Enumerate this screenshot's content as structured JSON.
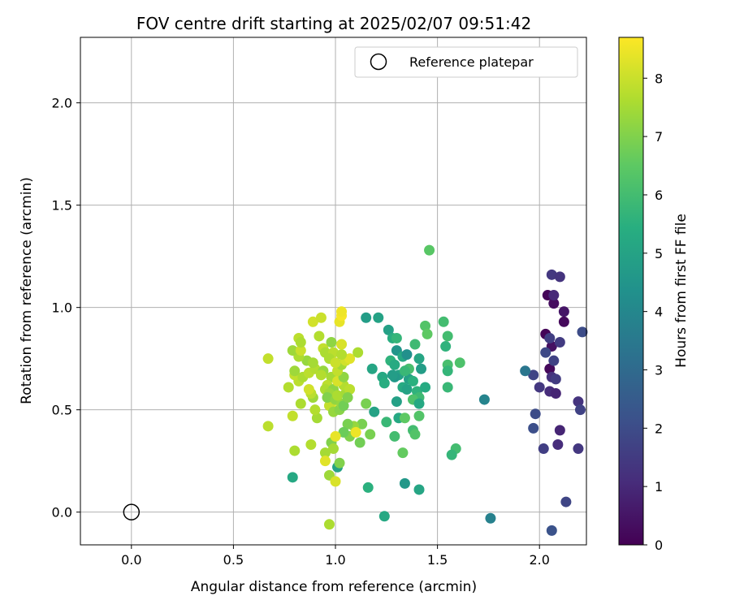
{
  "chart_data": {
    "type": "scatter",
    "title": "FOV centre drift starting at 2025/02/07 09:51:42",
    "xlabel": "Angular distance from reference (arcmin)",
    "ylabel": "Rotation from reference (arcmin)",
    "xlim": [
      -0.25,
      2.23
    ],
    "ylim": [
      -0.16,
      2.32
    ],
    "x_ticks": [
      0.0,
      0.5,
      1.0,
      1.5,
      2.0
    ],
    "y_ticks": [
      0.0,
      0.5,
      1.0,
      1.5,
      2.0
    ],
    "x_tick_labels": [
      "0.0",
      "0.5",
      "1.0",
      "1.5",
      "2.0"
    ],
    "y_tick_labels": [
      "0.0",
      "0.5",
      "1.0",
      "1.5",
      "2.0"
    ],
    "grid": true,
    "legend": {
      "position": "top-right",
      "label": "Reference platepar"
    },
    "reference_point": {
      "x": 0.0,
      "y": 0.0
    },
    "colorbar": {
      "label": "Hours from first FF file",
      "colormap": "viridis",
      "range": [
        0,
        8.7
      ],
      "ticks": [
        0,
        1,
        2,
        3,
        4,
        5,
        6,
        7,
        8
      ],
      "tick_labels": [
        "0",
        "1",
        "2",
        "3",
        "4",
        "5",
        "6",
        "7",
        "8"
      ]
    },
    "points": [
      {
        "x": 2.04,
        "y": 1.06,
        "h": 0.1
      },
      {
        "x": 2.07,
        "y": 1.02,
        "h": 0.3
      },
      {
        "x": 2.12,
        "y": 0.98,
        "h": 0.5
      },
      {
        "x": 2.12,
        "y": 0.93,
        "h": 0.2
      },
      {
        "x": 2.03,
        "y": 0.87,
        "h": 0.1
      },
      {
        "x": 2.06,
        "y": 0.81,
        "h": 0.4
      },
      {
        "x": 2.05,
        "y": 0.7,
        "h": 0.2
      },
      {
        "x": 2.06,
        "y": 1.16,
        "h": 1.4
      },
      {
        "x": 2.1,
        "y": 1.15,
        "h": 1.3
      },
      {
        "x": 2.07,
        "y": 1.06,
        "h": 1.0
      },
      {
        "x": 2.05,
        "y": 0.85,
        "h": 1.6
      },
      {
        "x": 2.1,
        "y": 0.83,
        "h": 1.5
      },
      {
        "x": 2.03,
        "y": 0.78,
        "h": 1.9
      },
      {
        "x": 2.07,
        "y": 0.74,
        "h": 1.7
      },
      {
        "x": 2.06,
        "y": 0.66,
        "h": 1.2
      },
      {
        "x": 2.08,
        "y": 0.65,
        "h": 1.5
      },
      {
        "x": 1.97,
        "y": 0.67,
        "h": 1.8
      },
      {
        "x": 2.0,
        "y": 0.61,
        "h": 1.4
      },
      {
        "x": 2.05,
        "y": 0.59,
        "h": 1.1
      },
      {
        "x": 2.08,
        "y": 0.58,
        "h": 0.9
      },
      {
        "x": 2.19,
        "y": 0.54,
        "h": 1.3
      },
      {
        "x": 2.2,
        "y": 0.5,
        "h": 1.7
      },
      {
        "x": 1.98,
        "y": 0.48,
        "h": 2.0
      },
      {
        "x": 1.97,
        "y": 0.41,
        "h": 2.1
      },
      {
        "x": 2.1,
        "y": 0.4,
        "h": 0.9
      },
      {
        "x": 2.09,
        "y": 0.33,
        "h": 1.1
      },
      {
        "x": 2.02,
        "y": 0.31,
        "h": 1.6
      },
      {
        "x": 2.19,
        "y": 0.31,
        "h": 1.4
      },
      {
        "x": 2.13,
        "y": 0.05,
        "h": 1.8
      },
      {
        "x": 2.06,
        "y": -0.09,
        "h": 2.2
      },
      {
        "x": 2.21,
        "y": 0.88,
        "h": 2.0
      },
      {
        "x": 1.93,
        "y": 0.69,
        "h": 3.4
      },
      {
        "x": 1.73,
        "y": 0.55,
        "h": 3.9
      },
      {
        "x": 1.76,
        "y": -0.03,
        "h": 3.8
      },
      {
        "x": 1.46,
        "y": 1.28,
        "h": 6.4
      },
      {
        "x": 1.53,
        "y": 0.93,
        "h": 6.0
      },
      {
        "x": 1.44,
        "y": 0.91,
        "h": 6.3
      },
      {
        "x": 1.45,
        "y": 0.87,
        "h": 6.5
      },
      {
        "x": 1.55,
        "y": 0.86,
        "h": 6.0
      },
      {
        "x": 1.54,
        "y": 0.81,
        "h": 5.6
      },
      {
        "x": 1.55,
        "y": 0.72,
        "h": 6.1
      },
      {
        "x": 1.61,
        "y": 0.73,
        "h": 6.2
      },
      {
        "x": 1.55,
        "y": 0.69,
        "h": 5.7
      },
      {
        "x": 1.55,
        "y": 0.61,
        "h": 5.8
      },
      {
        "x": 1.59,
        "y": 0.31,
        "h": 6.0
      },
      {
        "x": 1.57,
        "y": 0.28,
        "h": 5.7
      },
      {
        "x": 1.41,
        "y": 0.11,
        "h": 5.1
      },
      {
        "x": 1.34,
        "y": 0.14,
        "h": 4.6
      },
      {
        "x": 1.24,
        "y": -0.02,
        "h": 5.2
      },
      {
        "x": 1.16,
        "y": 0.12,
        "h": 5.5
      },
      {
        "x": 1.15,
        "y": 0.95,
        "h": 4.8
      },
      {
        "x": 1.21,
        "y": 0.95,
        "h": 5.0
      },
      {
        "x": 1.26,
        "y": 0.89,
        "h": 4.9
      },
      {
        "x": 1.28,
        "y": 0.85,
        "h": 5.4
      },
      {
        "x": 1.3,
        "y": 0.85,
        "h": 5.7
      },
      {
        "x": 1.3,
        "y": 0.79,
        "h": 4.5
      },
      {
        "x": 1.33,
        "y": 0.76,
        "h": 5.2
      },
      {
        "x": 1.35,
        "y": 0.77,
        "h": 4.3
      },
      {
        "x": 1.39,
        "y": 0.82,
        "h": 5.9
      },
      {
        "x": 1.27,
        "y": 0.74,
        "h": 5.6
      },
      {
        "x": 1.29,
        "y": 0.72,
        "h": 5.3
      },
      {
        "x": 1.41,
        "y": 0.75,
        "h": 5.1
      },
      {
        "x": 1.42,
        "y": 0.7,
        "h": 4.8
      },
      {
        "x": 1.36,
        "y": 0.7,
        "h": 6.1
      },
      {
        "x": 1.31,
        "y": 0.67,
        "h": 5.0
      },
      {
        "x": 1.29,
        "y": 0.66,
        "h": 4.6
      },
      {
        "x": 1.23,
        "y": 0.66,
        "h": 5.2
      },
      {
        "x": 1.24,
        "y": 0.63,
        "h": 5.4
      },
      {
        "x": 1.36,
        "y": 0.65,
        "h": 4.9
      },
      {
        "x": 1.38,
        "y": 0.64,
        "h": 5.5
      },
      {
        "x": 1.33,
        "y": 0.61,
        "h": 5.3
      },
      {
        "x": 1.35,
        "y": 0.6,
        "h": 5.0
      },
      {
        "x": 1.4,
        "y": 0.59,
        "h": 5.6
      },
      {
        "x": 1.44,
        "y": 0.61,
        "h": 5.3
      },
      {
        "x": 1.41,
        "y": 0.56,
        "h": 5.9
      },
      {
        "x": 1.38,
        "y": 0.55,
        "h": 6.2
      },
      {
        "x": 1.41,
        "y": 0.53,
        "h": 5.2
      },
      {
        "x": 1.3,
        "y": 0.54,
        "h": 4.9
      },
      {
        "x": 1.18,
        "y": 0.7,
        "h": 5.1
      },
      {
        "x": 1.19,
        "y": 0.49,
        "h": 5.0
      },
      {
        "x": 1.31,
        "y": 0.46,
        "h": 5.2
      },
      {
        "x": 1.34,
        "y": 0.46,
        "h": 6.5
      },
      {
        "x": 1.41,
        "y": 0.47,
        "h": 6.3
      },
      {
        "x": 1.25,
        "y": 0.44,
        "h": 5.8
      },
      {
        "x": 1.38,
        "y": 0.4,
        "h": 6.0
      },
      {
        "x": 1.39,
        "y": 0.38,
        "h": 6.3
      },
      {
        "x": 1.29,
        "y": 0.37,
        "h": 6.0
      },
      {
        "x": 1.33,
        "y": 0.29,
        "h": 6.6
      },
      {
        "x": 1.15,
        "y": 0.53,
        "h": 6.9
      },
      {
        "x": 1.17,
        "y": 0.38,
        "h": 6.9
      },
      {
        "x": 1.13,
        "y": 0.43,
        "h": 6.9
      },
      {
        "x": 1.09,
        "y": 0.42,
        "h": 7.3
      },
      {
        "x": 1.06,
        "y": 0.43,
        "h": 6.9
      },
      {
        "x": 1.07,
        "y": 0.37,
        "h": 7.0
      },
      {
        "x": 1.04,
        "y": 0.39,
        "h": 6.7
      },
      {
        "x": 1.12,
        "y": 0.34,
        "h": 6.8
      },
      {
        "x": 1.01,
        "y": 0.22,
        "h": 5.0
      },
      {
        "x": 1.02,
        "y": 0.24,
        "h": 7.0
      },
      {
        "x": 0.98,
        "y": 0.34,
        "h": 7.0
      },
      {
        "x": 0.99,
        "y": 0.31,
        "h": 7.5
      },
      {
        "x": 0.97,
        "y": 0.18,
        "h": 7.4
      },
      {
        "x": 0.97,
        "y": -0.06,
        "h": 7.6
      },
      {
        "x": 0.95,
        "y": 0.29,
        "h": 7.5
      },
      {
        "x": 0.95,
        "y": 0.25,
        "h": 8.3
      },
      {
        "x": 1.0,
        "y": 0.15,
        "h": 8.2
      },
      {
        "x": 0.79,
        "y": 0.17,
        "h": 5.2
      },
      {
        "x": 0.8,
        "y": 0.3,
        "h": 7.6
      },
      {
        "x": 0.88,
        "y": 0.33,
        "h": 7.7
      },
      {
        "x": 0.67,
        "y": 0.42,
        "h": 7.8
      },
      {
        "x": 0.79,
        "y": 0.47,
        "h": 7.9
      },
      {
        "x": 0.91,
        "y": 0.46,
        "h": 7.5
      },
      {
        "x": 0.9,
        "y": 0.5,
        "h": 7.7
      },
      {
        "x": 0.83,
        "y": 0.53,
        "h": 7.6
      },
      {
        "x": 0.89,
        "y": 0.56,
        "h": 7.4
      },
      {
        "x": 0.88,
        "y": 0.58,
        "h": 7.8
      },
      {
        "x": 0.87,
        "y": 0.6,
        "h": 8.1
      },
      {
        "x": 0.77,
        "y": 0.61,
        "h": 7.7
      },
      {
        "x": 0.82,
        "y": 0.64,
        "h": 7.8
      },
      {
        "x": 0.8,
        "y": 0.67,
        "h": 7.9
      },
      {
        "x": 0.8,
        "y": 0.69,
        "h": 7.4
      },
      {
        "x": 0.84,
        "y": 0.66,
        "h": 7.6
      },
      {
        "x": 0.87,
        "y": 0.68,
        "h": 7.8
      },
      {
        "x": 0.9,
        "y": 0.7,
        "h": 7.7
      },
      {
        "x": 0.86,
        "y": 0.74,
        "h": 7.3
      },
      {
        "x": 0.89,
        "y": 0.73,
        "h": 7.5
      },
      {
        "x": 0.82,
        "y": 0.76,
        "h": 7.6
      },
      {
        "x": 0.79,
        "y": 0.79,
        "h": 7.4
      },
      {
        "x": 0.83,
        "y": 0.79,
        "h": 8.0
      },
      {
        "x": 0.82,
        "y": 0.85,
        "h": 7.8
      },
      {
        "x": 0.83,
        "y": 0.83,
        "h": 7.6
      },
      {
        "x": 0.67,
        "y": 0.75,
        "h": 7.9
      },
      {
        "x": 0.92,
        "y": 0.86,
        "h": 7.7
      },
      {
        "x": 0.89,
        "y": 0.93,
        "h": 8.1
      },
      {
        "x": 0.93,
        "y": 0.95,
        "h": 8.0
      },
      {
        "x": 0.94,
        "y": 0.8,
        "h": 7.9
      },
      {
        "x": 0.95,
        "y": 0.78,
        "h": 7.6
      },
      {
        "x": 0.98,
        "y": 0.83,
        "h": 7.2
      },
      {
        "x": 0.99,
        "y": 0.78,
        "h": 7.8
      },
      {
        "x": 0.97,
        "y": 0.75,
        "h": 7.6
      },
      {
        "x": 0.94,
        "y": 0.69,
        "h": 7.3
      },
      {
        "x": 0.93,
        "y": 0.67,
        "h": 7.7
      },
      {
        "x": 0.98,
        "y": 0.66,
        "h": 7.5
      },
      {
        "x": 0.96,
        "y": 0.62,
        "h": 7.8
      },
      {
        "x": 0.95,
        "y": 0.6,
        "h": 7.6
      },
      {
        "x": 0.99,
        "y": 0.6,
        "h": 7.2
      },
      {
        "x": 0.97,
        "y": 0.58,
        "h": 7.4
      },
      {
        "x": 0.98,
        "y": 0.53,
        "h": 8.3
      },
      {
        "x": 0.97,
        "y": 0.52,
        "h": 7.9
      },
      {
        "x": 0.99,
        "y": 0.49,
        "h": 7.3
      },
      {
        "x": 0.96,
        "y": 0.56,
        "h": 7.0
      },
      {
        "x": 1.0,
        "y": 0.55,
        "h": 7.2
      },
      {
        "x": 1.02,
        "y": 0.5,
        "h": 7.1
      },
      {
        "x": 1.03,
        "y": 0.53,
        "h": 7.3
      },
      {
        "x": 1.01,
        "y": 0.57,
        "h": 7.6
      },
      {
        "x": 1.05,
        "y": 0.58,
        "h": 7.5
      },
      {
        "x": 1.04,
        "y": 0.62,
        "h": 7.7
      },
      {
        "x": 1.07,
        "y": 0.6,
        "h": 7.8
      },
      {
        "x": 1.01,
        "y": 0.64,
        "h": 8.2
      },
      {
        "x": 1.04,
        "y": 0.66,
        "h": 7.2
      },
      {
        "x": 1.01,
        "y": 0.69,
        "h": 7.9
      },
      {
        "x": 1.03,
        "y": 0.72,
        "h": 7.5
      },
      {
        "x": 1.0,
        "y": 0.73,
        "h": 8.0
      },
      {
        "x": 1.05,
        "y": 0.74,
        "h": 8.1
      },
      {
        "x": 1.07,
        "y": 0.75,
        "h": 8.3
      },
      {
        "x": 1.03,
        "y": 0.77,
        "h": 7.7
      },
      {
        "x": 1.11,
        "y": 0.78,
        "h": 7.6
      },
      {
        "x": 1.03,
        "y": 0.82,
        "h": 8.2
      },
      {
        "x": 1.02,
        "y": 0.93,
        "h": 8.4
      },
      {
        "x": 1.03,
        "y": 0.96,
        "h": 8.6
      },
      {
        "x": 1.03,
        "y": 0.98,
        "h": 8.5
      },
      {
        "x": 1.04,
        "y": 0.52,
        "h": 6.8
      },
      {
        "x": 1.06,
        "y": 0.56,
        "h": 7.0
      },
      {
        "x": 1.0,
        "y": 0.37,
        "h": 8.4
      },
      {
        "x": 1.1,
        "y": 0.39,
        "h": 8.5
      },
      {
        "x": 1.34,
        "y": 0.69,
        "h": 5.8
      },
      {
        "x": 1.28,
        "y": 0.67,
        "h": 4.8
      }
    ]
  }
}
